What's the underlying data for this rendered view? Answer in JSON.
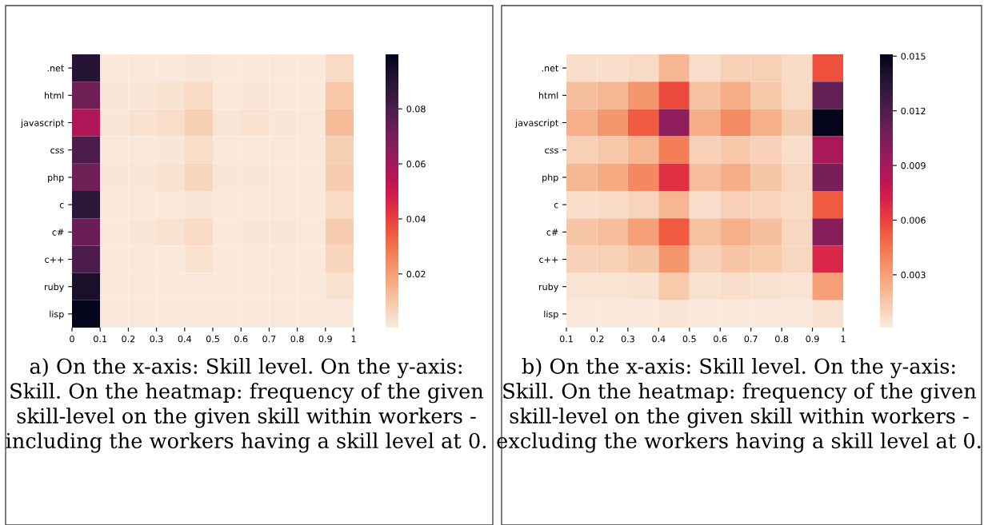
{
  "chart_data": [
    {
      "type": "heatmap",
      "x": [
        0.05,
        0.15,
        0.25,
        0.35,
        0.45,
        0.55,
        0.65,
        0.75,
        0.85,
        0.95
      ],
      "y_categories": [
        ".net",
        "html",
        "javascript",
        "css",
        "php",
        "c",
        "c#",
        "c++",
        "ruby",
        "lisp"
      ],
      "cells": [
        [
          0.09,
          0.001,
          0.001,
          0.001,
          0.002,
          0.001,
          0.001,
          0.001,
          0.001,
          0.005
        ],
        [
          0.072,
          0.002,
          0.002,
          0.003,
          0.005,
          0.001,
          0.002,
          0.001,
          0.001,
          0.01
        ],
        [
          0.057,
          0.002,
          0.003,
          0.004,
          0.008,
          0.002,
          0.003,
          0.002,
          0.001,
          0.013
        ],
        [
          0.08,
          0.001,
          0.001,
          0.002,
          0.004,
          0.001,
          0.001,
          0.001,
          0.001,
          0.008
        ],
        [
          0.072,
          0.002,
          0.002,
          0.003,
          0.006,
          0.002,
          0.002,
          0.001,
          0.001,
          0.009
        ],
        [
          0.088,
          0.001,
          0.001,
          0.001,
          0.002,
          0.001,
          0.001,
          0.001,
          0.001,
          0.005
        ],
        [
          0.073,
          0.001,
          0.002,
          0.003,
          0.005,
          0.001,
          0.002,
          0.002,
          0.001,
          0.009
        ],
        [
          0.08,
          0.001,
          0.001,
          0.001,
          0.003,
          0.001,
          0.001,
          0.001,
          0.001,
          0.006
        ],
        [
          0.093,
          0.001,
          0.001,
          0.001,
          0.001,
          0.001,
          0.001,
          0.001,
          0.001,
          0.003
        ],
        [
          0.099,
          0.001,
          0.001,
          0.001,
          0.001,
          0.001,
          0.001,
          0.001,
          0.001,
          0.001
        ]
      ],
      "xlim": [
        0,
        1
      ],
      "xticks": [
        0,
        0.1,
        0.2,
        0.3,
        0.4,
        0.5,
        0.6,
        0.7,
        0.8,
        0.9,
        1
      ],
      "clim": [
        0.0005,
        0.0998
      ],
      "cticks": [
        0.02,
        0.04,
        0.06,
        0.08
      ],
      "annotations": [
        "a) On the x-axis: Skill level. On the y-axis: Skill. On the heatmap: frequency of the given skill-level on the given skill within workers - including the workers having a skill level at 0."
      ]
    },
    {
      "type": "heatmap",
      "x": [
        0.15,
        0.25,
        0.35,
        0.45,
        0.55,
        0.65,
        0.75,
        0.85,
        0.95
      ],
      "y_categories": [
        ".net",
        "html",
        "javascript",
        "css",
        "php",
        "c",
        "c#",
        "c++",
        "ruby",
        "lisp"
      ],
      "cells": [
        [
          0.0006,
          0.0006,
          0.0008,
          0.0022,
          0.0006,
          0.0012,
          0.0012,
          0.0007,
          0.0055
        ],
        [
          0.0018,
          0.0022,
          0.0033,
          0.0058,
          0.0017,
          0.0025,
          0.0015,
          0.0008,
          0.0113
        ],
        [
          0.0024,
          0.0033,
          0.0052,
          0.0097,
          0.0025,
          0.0037,
          0.0024,
          0.0013,
          0.015
        ],
        [
          0.0012,
          0.0015,
          0.0022,
          0.0042,
          0.0011,
          0.0015,
          0.0011,
          0.0006,
          0.0088
        ],
        [
          0.0021,
          0.0026,
          0.0038,
          0.0066,
          0.0019,
          0.0025,
          0.0016,
          0.0009,
          0.0105
        ],
        [
          0.0006,
          0.0008,
          0.001,
          0.0022,
          0.0006,
          0.0011,
          0.001,
          0.0008,
          0.0053
        ],
        [
          0.0016,
          0.0019,
          0.003,
          0.0053,
          0.0017,
          0.0024,
          0.0018,
          0.0009,
          0.01
        ],
        [
          0.0011,
          0.0012,
          0.0016,
          0.0033,
          0.0011,
          0.0016,
          0.0014,
          0.0009,
          0.007
        ],
        [
          0.0004,
          0.0004,
          0.0005,
          0.0014,
          0.0005,
          0.0006,
          0.0005,
          0.0004,
          0.003
        ],
        [
          0.0002,
          0.0002,
          0.0002,
          0.0003,
          0.0002,
          0.0002,
          0.0002,
          0.0002,
          0.0005
        ]
      ],
      "xlim": [
        0.1,
        1
      ],
      "xticks": [
        0.1,
        0.2,
        0.3,
        0.4,
        0.5,
        0.6,
        0.7,
        0.8,
        0.9,
        1
      ],
      "clim": [
        0.0001,
        0.0151
      ],
      "cticks": [
        0.003,
        0.006,
        0.009,
        0.012,
        0.015
      ],
      "annotations": [
        "b) On the x-axis: Skill level. On the y-axis: Skill. On the heatmap: frequency of the given skill-level on the given skill within workers - excluding the workers having a skill level at 0."
      ]
    }
  ]
}
